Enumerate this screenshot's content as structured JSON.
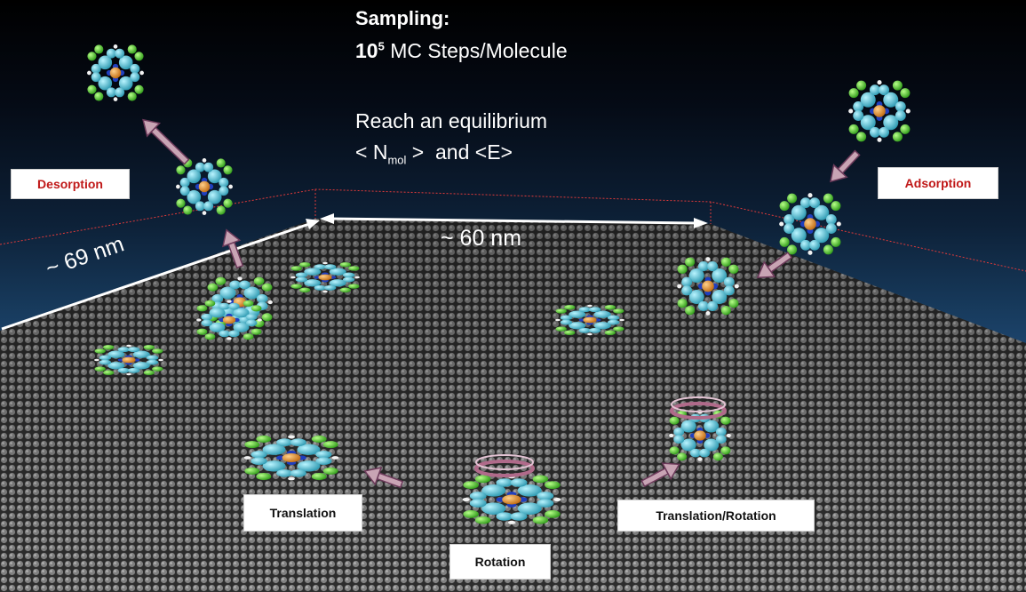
{
  "sampling": {
    "title": "Sampling:",
    "steps_base": "10",
    "steps_exponent": "5",
    "steps_unit": "MC Steps/Molecule",
    "equilibrium_line1": "Reach an equilibrium",
    "equilibrium_prefix": "< N",
    "equilibrium_subscript": "mol",
    "equilibrium_suffix": ">  and <E>"
  },
  "dimensions": {
    "width_label": "~ 60 nm",
    "depth_label": "~ 69 nm"
  },
  "process_labels": {
    "desorption": "Desorption",
    "adsorption": "Adsorption",
    "translation": "Translation",
    "rotation": "Rotation",
    "translation_rotation": "Translation/Rotation"
  },
  "colors": {
    "label_red": "#c01818",
    "arrow_fill": "#c8a4b4",
    "arrow_stroke": "#6c3a5a",
    "dimension_line": "#ffffff",
    "box_outline": "#e03a3a",
    "molecule_ring": "#55c7d6",
    "molecule_chlorine": "#4cc830",
    "molecule_metal": "#e8922a",
    "molecule_nitrogen": "#1f3fbf"
  }
}
